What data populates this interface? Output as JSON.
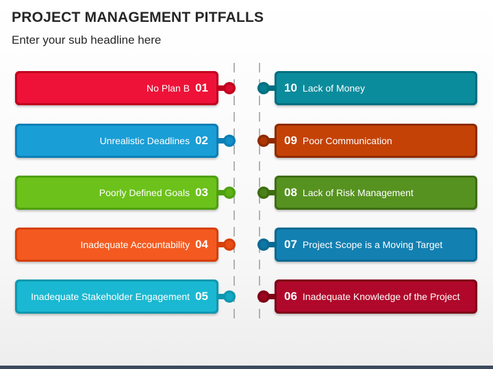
{
  "header": {
    "title": "PROJECT MANAGEMENT PITFALLS",
    "subtitle": "Enter your sub headline here"
  },
  "left_items": [
    {
      "number": "01",
      "label": "No Plan B",
      "outer": "#c1001d",
      "face": "#ee1238"
    },
    {
      "number": "02",
      "label": "Unrealistic Deadlines",
      "outer": "#0a7fb6",
      "face": "#1a9ed6"
    },
    {
      "number": "03",
      "label": "Poorly Defined Goals",
      "outer": "#4fa010",
      "face": "#6cc11a"
    },
    {
      "number": "04",
      "label": "Inadequate Accountability",
      "outer": "#d6400b",
      "face": "#f45a1f"
    },
    {
      "number": "05",
      "label": "Inadequate Stakeholder Engagement",
      "outer": "#0d98b0",
      "face": "#1ab8d2"
    }
  ],
  "right_items": [
    {
      "number": "10",
      "label": "Lack of Money",
      "outer": "#006f80",
      "face": "#0b8c9c"
    },
    {
      "number": "09",
      "label": "Poor Communication",
      "outer": "#8f2a00",
      "face": "#c44206"
    },
    {
      "number": "08",
      "label": "Lack of Risk Management",
      "outer": "#3e6d12",
      "face": "#569220"
    },
    {
      "number": "07",
      "label": "Project Scope is a Moving Target",
      "outer": "#0a6a93",
      "face": "#1280b1"
    },
    {
      "number": "06",
      "label": "Inadequate Knowledge of the Project",
      "outer": "#7e0216",
      "face": "#b0082a"
    }
  ]
}
